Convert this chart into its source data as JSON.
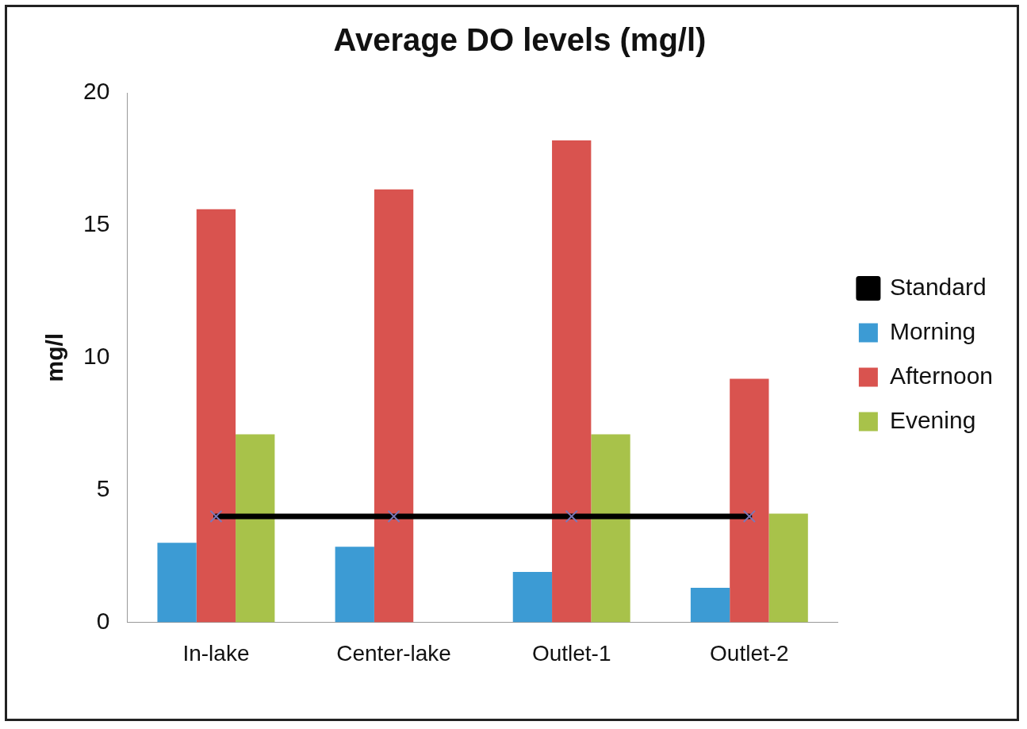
{
  "chart_data": {
    "type": "bar",
    "title": "Average DO levels (mg/l)",
    "ylabel": "mg/l",
    "categories": [
      "In-lake",
      "Center-lake",
      "Outlet-1",
      "Outlet-2"
    ],
    "series": [
      {
        "name": "Morning",
        "color": "#3c9bd4",
        "values": [
          3.0,
          2.85,
          1.9,
          1.3
        ]
      },
      {
        "name": "Afternoon",
        "color": "#d9534f",
        "values": [
          15.6,
          16.35,
          18.2,
          9.2
        ]
      },
      {
        "name": "Evening",
        "color": "#a8c24a",
        "values": [
          7.1,
          null,
          7.1,
          4.1
        ]
      },
      {
        "name": "Standard",
        "type": "line",
        "color": "#000000",
        "values": [
          4,
          4,
          4,
          4
        ]
      }
    ],
    "ylim": [
      0,
      20
    ],
    "yticks": [
      0,
      5,
      10,
      15,
      20
    ],
    "grid": false,
    "legend": "right",
    "marker": "cross"
  }
}
